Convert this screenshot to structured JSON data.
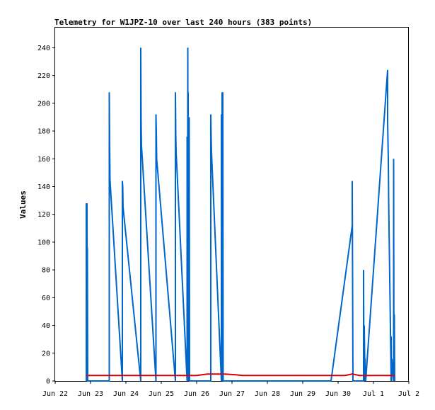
{
  "chart_data": {
    "type": "line",
    "title": "Telemetry for W1JPZ-10 over last 240 hours (383 points)",
    "xlabel": "",
    "ylabel": "Values",
    "x_tick_labels": [
      "Jun 22",
      "Jun 23",
      "Jun 24",
      "Jun 25",
      "Jun 26",
      "Jun 27",
      "Jun 28",
      "Jun 29",
      "Jun 30",
      "Jul 1",
      "Jul 2"
    ],
    "xlim_days": [
      0,
      10
    ],
    "y_ticks": [
      0,
      20,
      40,
      60,
      80,
      100,
      120,
      140,
      160,
      180,
      200,
      220,
      240
    ],
    "ylim": [
      0,
      255
    ],
    "grid": false,
    "legend": "none",
    "series": [
      {
        "color": "#0066cc",
        "x_days": [
          0.88,
          0.88,
          0.89,
          0.9,
          0.91,
          0.91,
          0.92,
          0.93,
          1.53,
          1.53,
          1.54,
          1.55,
          1.9,
          1.9,
          1.91,
          1.92,
          2.42,
          2.42,
          2.43,
          2.44,
          2.85,
          2.85,
          2.86,
          2.87,
          3.4,
          3.4,
          3.41,
          3.42,
          3.73,
          3.73,
          3.74,
          3.75,
          3.76,
          3.76,
          3.77,
          3.78,
          3.79,
          3.79,
          3.8,
          3.81,
          4.4,
          4.4,
          4.41,
          4.42,
          4.7,
          4.7,
          4.71,
          4.72,
          4.74,
          4.74,
          4.75,
          4.76,
          7.8,
          8.4,
          8.4,
          8.42,
          8.72,
          8.72,
          8.73,
          8.74,
          8.76,
          8.76,
          8.78,
          9.4,
          9.4,
          9.42,
          9.43,
          9.5,
          9.5,
          9.51,
          9.52,
          9.57,
          9.57,
          9.58,
          9.59,
          9.6
        ],
        "y_values": [
          0,
          128,
          0,
          128,
          0,
          96,
          0,
          0,
          0,
          208,
          171,
          145,
          0,
          144,
          140,
          125,
          0,
          240,
          188,
          170,
          0,
          192,
          180,
          160,
          0,
          208,
          178,
          165,
          0,
          176,
          0,
          240,
          0,
          208,
          0,
          180,
          0,
          190,
          0,
          0,
          0,
          192,
          176,
          165,
          0,
          192,
          0,
          208,
          0,
          208,
          0,
          0,
          0,
          112,
          144,
          0,
          0,
          80,
          0,
          40,
          0,
          16,
          0,
          224,
          187,
          160,
          130,
          0,
          32,
          0,
          16,
          0,
          160,
          0,
          48,
          0
        ]
      },
      {
        "color": "#dd0000",
        "x_days": [
          0.88,
          4.0,
          4.3,
          4.8,
          5.1,
          5.3,
          8.0,
          8.2,
          8.4,
          8.6,
          9.6
        ],
        "y_values": [
          4,
          4,
          5,
          5,
          4.5,
          4,
          4,
          4,
          5,
          4,
          4
        ]
      }
    ]
  }
}
